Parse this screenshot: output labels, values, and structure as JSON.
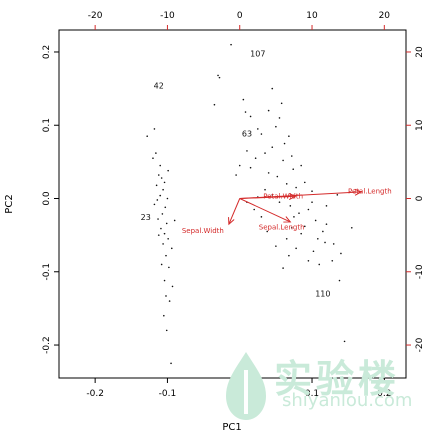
{
  "chart_data": {
    "type": "scatter",
    "subtype": "biplot",
    "xlabel": "PC1",
    "ylabel": "PC2",
    "xlim": [
      -0.25,
      0.23
    ],
    "ylim": [
      -0.245,
      0.23
    ],
    "x_ticks": [
      -0.2,
      -0.1,
      0.0,
      0.1,
      0.2
    ],
    "y_ticks": [
      -0.2,
      -0.1,
      0.0,
      0.1,
      0.2
    ],
    "top_ticks": [
      -20,
      -10,
      0,
      10,
      20
    ],
    "right_ticks": [
      -20,
      -10,
      0,
      10,
      20
    ],
    "secondary_scale_factor": 100,
    "points": [
      {
        "x": -0.128,
        "y": 0.085
      },
      {
        "x": -0.118,
        "y": 0.095
      },
      {
        "x": -0.12,
        "y": 0.055
      },
      {
        "x": -0.112,
        "y": 0.032
      },
      {
        "x": -0.108,
        "y": 0.028
      },
      {
        "x": -0.115,
        "y": 0.018
      },
      {
        "x": -0.106,
        "y": 0.012
      },
      {
        "x": -0.11,
        "y": 0.004
      },
      {
        "x": -0.114,
        "y": -0.002
      },
      {
        "x": -0.103,
        "y": -0.012
      },
      {
        "x": -0.118,
        "y": -0.008
      },
      {
        "x": -0.107,
        "y": -0.021
      },
      {
        "x": -0.113,
        "y": -0.028
      },
      {
        "x": -0.101,
        "y": -0.034
      },
      {
        "x": -0.109,
        "y": -0.041
      },
      {
        "x": -0.104,
        "y": -0.048
      },
      {
        "x": -0.099,
        "y": -0.055
      },
      {
        "x": -0.106,
        "y": -0.062
      },
      {
        "x": -0.094,
        "y": -0.068
      },
      {
        "x": -0.102,
        "y": -0.078
      },
      {
        "x": -0.098,
        "y": -0.094
      },
      {
        "x": -0.104,
        "y": -0.112
      },
      {
        "x": -0.093,
        "y": -0.12
      },
      {
        "x": -0.097,
        "y": -0.14
      },
      {
        "x": -0.105,
        "y": -0.16
      },
      {
        "x": -0.101,
        "y": -0.18
      },
      {
        "x": -0.095,
        "y": -0.225
      },
      {
        "x": -0.102,
        "y": -0.133
      },
      {
        "x": -0.11,
        "y": 0.045
      },
      {
        "x": -0.116,
        "y": 0.062
      },
      {
        "x": -0.1,
        "y": 0.0
      },
      {
        "x": -0.108,
        "y": -0.09
      },
      {
        "x": -0.09,
        "y": -0.03
      },
      {
        "x": -0.112,
        "y": -0.05
      },
      {
        "x": -0.104,
        "y": 0.022
      },
      {
        "x": -0.099,
        "y": 0.038
      },
      {
        "x": -0.012,
        "y": 0.21
      },
      {
        "x": -0.03,
        "y": 0.168
      },
      {
        "x": -0.028,
        "y": 0.165
      },
      {
        "x": -0.035,
        "y": 0.128
      },
      {
        "x": 0.005,
        "y": 0.135
      },
      {
        "x": 0.008,
        "y": 0.118
      },
      {
        "x": 0.015,
        "y": 0.112
      },
      {
        "x": 0.03,
        "y": 0.088
      },
      {
        "x": 0.05,
        "y": 0.098
      },
      {
        "x": 0.058,
        "y": 0.13
      },
      {
        "x": 0.022,
        "y": 0.055
      },
      {
        "x": 0.01,
        "y": 0.065
      },
      {
        "x": 0.0,
        "y": 0.045
      },
      {
        "x": -0.005,
        "y": 0.032
      },
      {
        "x": 0.015,
        "y": 0.042
      },
      {
        "x": 0.035,
        "y": 0.062
      },
      {
        "x": 0.045,
        "y": 0.07
      },
      {
        "x": 0.06,
        "y": 0.052
      },
      {
        "x": 0.068,
        "y": 0.085
      },
      {
        "x": 0.072,
        "y": 0.058
      },
      {
        "x": 0.04,
        "y": 0.035
      },
      {
        "x": 0.052,
        "y": 0.03
      },
      {
        "x": 0.074,
        "y": 0.04
      },
      {
        "x": 0.085,
        "y": 0.045
      },
      {
        "x": 0.065,
        "y": 0.02
      },
      {
        "x": 0.078,
        "y": 0.015
      },
      {
        "x": 0.09,
        "y": 0.022
      },
      {
        "x": 0.1,
        "y": 0.01
      },
      {
        "x": 0.035,
        "y": 0.012
      },
      {
        "x": 0.045,
        "y": 0.005
      },
      {
        "x": 0.025,
        "y": 0.002
      },
      {
        "x": 0.055,
        "y": -0.005
      },
      {
        "x": 0.07,
        "y": -0.01
      },
      {
        "x": 0.082,
        "y": -0.02
      },
      {
        "x": 0.095,
        "y": -0.015
      },
      {
        "x": 0.105,
        "y": -0.03
      },
      {
        "x": 0.09,
        "y": -0.038
      },
      {
        "x": 0.115,
        "y": -0.045
      },
      {
        "x": 0.12,
        "y": -0.035
      },
      {
        "x": 0.108,
        "y": -0.055
      },
      {
        "x": 0.085,
        "y": -0.048
      },
      {
        "x": 0.072,
        "y": -0.04
      },
      {
        "x": 0.065,
        "y": -0.055
      },
      {
        "x": 0.05,
        "y": -0.065
      },
      {
        "x": 0.038,
        "y": -0.045
      },
      {
        "x": 0.03,
        "y": -0.025
      },
      {
        "x": 0.02,
        "y": -0.015
      },
      {
        "x": 0.01,
        "y": -0.005
      },
      {
        "x": 0.13,
        "y": -0.062
      },
      {
        "x": 0.128,
        "y": -0.085
      },
      {
        "x": 0.14,
        "y": -0.075
      },
      {
        "x": 0.138,
        "y": -0.112
      },
      {
        "x": 0.095,
        "y": -0.085
      },
      {
        "x": 0.11,
        "y": -0.09
      },
      {
        "x": 0.06,
        "y": -0.095
      },
      {
        "x": 0.155,
        "y": -0.04
      },
      {
        "x": 0.102,
        "y": -0.072
      },
      {
        "x": 0.118,
        "y": -0.06
      },
      {
        "x": 0.078,
        "y": -0.068
      },
      {
        "x": 0.068,
        "y": -0.078
      },
      {
        "x": 0.1,
        "y": -0.005
      },
      {
        "x": 0.12,
        "y": -0.01
      },
      {
        "x": 0.135,
        "y": 0.005
      },
      {
        "x": 0.04,
        "y": 0.12
      },
      {
        "x": 0.025,
        "y": 0.095
      },
      {
        "x": 0.055,
        "y": 0.11
      },
      {
        "x": 0.045,
        "y": 0.15
      },
      {
        "x": 0.075,
        "y": -0.025
      },
      {
        "x": 0.145,
        "y": -0.195
      },
      {
        "x": 0.062,
        "y": 0.075
      }
    ],
    "point_labels": [
      {
        "text": "107",
        "x": 0.025,
        "y": 0.198
      },
      {
        "text": "42",
        "x": -0.112,
        "y": 0.154
      },
      {
        "text": "63",
        "x": 0.01,
        "y": 0.089
      },
      {
        "text": "23",
        "x": -0.13,
        "y": -0.025
      },
      {
        "text": "110",
        "x": 0.115,
        "y": -0.13
      }
    ],
    "loadings": [
      {
        "name": "Petal.Length",
        "x": 0.168,
        "y": 0.009,
        "label_x": 0.18,
        "label_y": 0.011
      },
      {
        "name": "Petal.Width",
        "x": 0.077,
        "y": 0.003,
        "label_x": 0.06,
        "label_y": 0.004
      },
      {
        "name": "Sepal.Length",
        "x": 0.07,
        "y": -0.032,
        "label_x": 0.058,
        "label_y": -0.038
      },
      {
        "name": "Sepal.Width",
        "x": -0.015,
        "y": -0.035,
        "label_x": -0.051,
        "label_y": -0.043
      }
    ],
    "colors": {
      "points": "#111111",
      "arrows": "#d42a2a",
      "axes": "#000000",
      "secondary_axes": "#d42a2a"
    },
    "grid": false,
    "legend": "none"
  },
  "watermark": {
    "main": "实验楼",
    "sub": "shiyanlou.com"
  }
}
